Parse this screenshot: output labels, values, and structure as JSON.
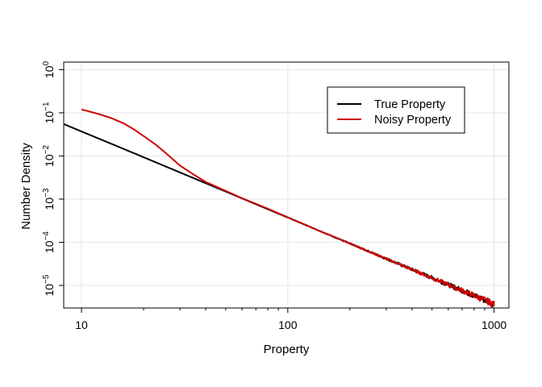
{
  "chart_data": {
    "type": "line",
    "xlabel": "Property",
    "ylabel": "Number Density",
    "xscale": "log",
    "yscale": "log",
    "xlim": [
      8.2,
      1180
    ],
    "ylim": [
      3e-06,
      1.5
    ],
    "x_ticks": [
      {
        "value": 10,
        "label": "10"
      },
      {
        "value": 100,
        "label": "100"
      },
      {
        "value": 1000,
        "label": "1000"
      }
    ],
    "y_ticks": [
      {
        "value": 1,
        "base": "10",
        "exp": "0"
      },
      {
        "value": 0.1,
        "base": "10",
        "exp": "−1"
      },
      {
        "value": 0.01,
        "base": "10",
        "exp": "−2"
      },
      {
        "value": 0.001,
        "base": "10",
        "exp": "−3"
      },
      {
        "value": 0.0001,
        "base": "10",
        "exp": "−4"
      },
      {
        "value": 1e-05,
        "base": "10",
        "exp": "−5"
      }
    ],
    "grid": true,
    "legend_position": "top-right",
    "series": [
      {
        "name": "True Property",
        "color": "#000000",
        "x": [
          8.2,
          10,
          15,
          20,
          30,
          40,
          50,
          70,
          100,
          150,
          200,
          300,
          400,
          500,
          700,
          1000
        ],
        "y": [
          0.055,
          0.037,
          0.0166,
          0.00935,
          0.00416,
          0.00234,
          0.0015,
          0.000763,
          0.000374,
          0.000166,
          9.35e-05,
          4.16e-05,
          2.34e-05,
          1.5e-05,
          7.63e-06,
          3.7e-06
        ]
      },
      {
        "name": "Noisy Property",
        "color": "#cc0000",
        "x": [
          10,
          12,
          14,
          16,
          18,
          20,
          23,
          26,
          30,
          35,
          40,
          50,
          60,
          70,
          80,
          100,
          150,
          200,
          300,
          400,
          500,
          700,
          1000
        ],
        "y": [
          0.12,
          0.095,
          0.075,
          0.057,
          0.041,
          0.029,
          0.018,
          0.011,
          0.006,
          0.0037,
          0.0025,
          0.00155,
          0.00105,
          0.00078,
          0.0006,
          0.00038,
          0.000166,
          9.35e-05,
          4.16e-05,
          2.34e-05,
          1.5e-05,
          7.63e-06,
          3.7e-06
        ]
      }
    ]
  }
}
